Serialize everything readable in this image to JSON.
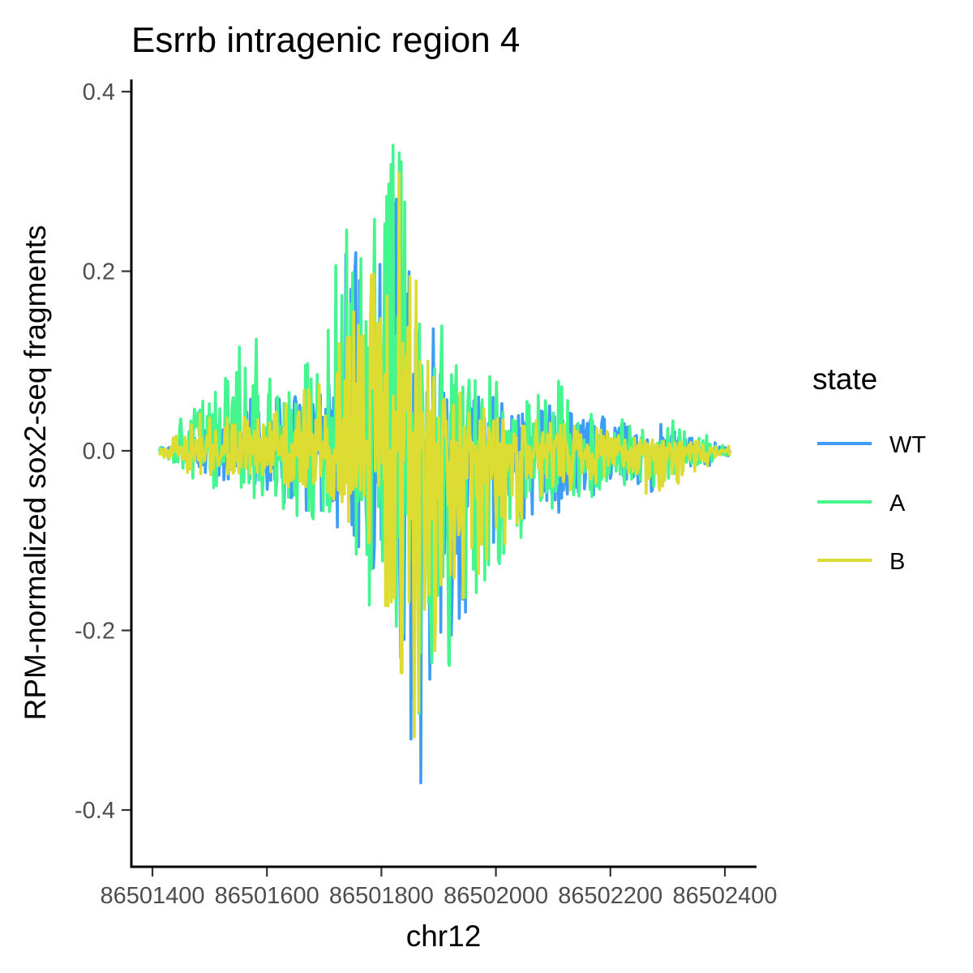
{
  "chart_data": {
    "type": "line",
    "title": "Esrrb intragenic region 4",
    "xlabel": "chr12",
    "ylabel": "RPM-normalized sox2-seq fragments",
    "xlim": [
      86501360,
      86502420
    ],
    "ylim": [
      -0.46,
      0.41
    ],
    "x_ticks": [
      86501400,
      86501600,
      86501800,
      86502000,
      86502200,
      86502400
    ],
    "x_tick_labels": [
      "86501400",
      "86501600",
      "86501800",
      "86502000",
      "86502200",
      "86502400"
    ],
    "y_ticks": [
      -0.4,
      -0.2,
      0.0,
      0.2,
      0.4
    ],
    "y_tick_labels": [
      "-0.4",
      "-0.2",
      "0.0",
      "0.2",
      "0.4"
    ],
    "grid": false,
    "legend": {
      "title": "state",
      "position": "right"
    },
    "x_range": [
      86501412,
      86502410
    ],
    "peak_x": 86501830,
    "colors": {
      "WT": "#3d9cf6",
      "A": "#45f68e",
      "B": "#dcdc32"
    },
    "series": [
      {
        "name": "WT",
        "color": "#3d9cf6",
        "upper": [
          [
            86501412,
            0.0
          ],
          [
            86501500,
            0.03
          ],
          [
            86501560,
            0.05
          ],
          [
            86501600,
            0.06
          ],
          [
            86501640,
            0.07
          ],
          [
            86501680,
            0.06
          ],
          [
            86501720,
            0.09
          ],
          [
            86501740,
            0.25
          ],
          [
            86501760,
            0.3
          ],
          [
            86501780,
            0.24
          ],
          [
            86501800,
            0.3
          ],
          [
            86501815,
            0.35
          ],
          [
            86501830,
            0.33
          ],
          [
            86501845,
            0.3
          ],
          [
            86501860,
            0.22
          ],
          [
            86501880,
            0.15
          ],
          [
            86501900,
            0.13
          ],
          [
            86501920,
            0.08
          ],
          [
            86501940,
            0.06
          ],
          [
            86501970,
            0.08
          ],
          [
            86502000,
            0.06
          ],
          [
            86502050,
            0.04
          ],
          [
            86502100,
            0.05
          ],
          [
            86502150,
            0.04
          ],
          [
            86502200,
            0.05
          ],
          [
            86502250,
            0.03
          ],
          [
            86502300,
            0.03
          ],
          [
            86502350,
            0.02
          ],
          [
            86502410,
            0.0
          ]
        ],
        "lower": [
          [
            86501412,
            0.0
          ],
          [
            86501500,
            -0.03
          ],
          [
            86501560,
            -0.04
          ],
          [
            86501600,
            -0.05
          ],
          [
            86501650,
            -0.07
          ],
          [
            86501700,
            -0.08
          ],
          [
            86501750,
            -0.12
          ],
          [
            86501790,
            -0.15
          ],
          [
            86501820,
            -0.2
          ],
          [
            86501850,
            -0.32
          ],
          [
            86501865,
            -0.42
          ],
          [
            86501880,
            -0.36
          ],
          [
            86501900,
            -0.33
          ],
          [
            86501920,
            -0.26
          ],
          [
            86501940,
            -0.2
          ],
          [
            86501960,
            -0.16
          ],
          [
            86501990,
            -0.13
          ],
          [
            86502020,
            -0.1
          ],
          [
            86502060,
            -0.08
          ],
          [
            86502100,
            -0.07
          ],
          [
            86502150,
            -0.05
          ],
          [
            86502200,
            -0.04
          ],
          [
            86502260,
            -0.05
          ],
          [
            86502300,
            -0.03
          ],
          [
            86502350,
            -0.02
          ],
          [
            86502410,
            0.0
          ]
        ]
      },
      {
        "name": "A",
        "color": "#45f68e",
        "upper": [
          [
            86501412,
            0.0
          ],
          [
            86501480,
            0.06
          ],
          [
            86501520,
            0.07
          ],
          [
            86501570,
            0.16
          ],
          [
            86501610,
            0.08
          ],
          [
            86501650,
            0.07
          ],
          [
            86501700,
            0.15
          ],
          [
            86501740,
            0.28
          ],
          [
            86501770,
            0.22
          ],
          [
            86501800,
            0.29
          ],
          [
            86501825,
            0.37
          ],
          [
            86501840,
            0.34
          ],
          [
            86501860,
            0.27
          ],
          [
            86501880,
            0.2
          ],
          [
            86501900,
            0.16
          ],
          [
            86501930,
            0.1
          ],
          [
            86501960,
            0.08
          ],
          [
            86501990,
            0.1
          ],
          [
            86502030,
            0.07
          ],
          [
            86502060,
            0.05
          ],
          [
            86502100,
            0.11
          ],
          [
            86502130,
            0.05
          ],
          [
            86502200,
            0.04
          ],
          [
            86502260,
            0.03
          ],
          [
            86502320,
            0.03
          ],
          [
            86502410,
            0.0
          ]
        ],
        "lower": [
          [
            86501412,
            0.0
          ],
          [
            86501480,
            -0.04
          ],
          [
            86501540,
            -0.05
          ],
          [
            86501600,
            -0.06
          ],
          [
            86501650,
            -0.08
          ],
          [
            86501700,
            -0.11
          ],
          [
            86501760,
            -0.14
          ],
          [
            86501800,
            -0.22
          ],
          [
            86501820,
            -0.25
          ],
          [
            86501840,
            -0.3
          ],
          [
            86501855,
            -0.39
          ],
          [
            86501875,
            -0.33
          ],
          [
            86501895,
            -0.32
          ],
          [
            86501915,
            -0.27
          ],
          [
            86501940,
            -0.21
          ],
          [
            86501970,
            -0.17
          ],
          [
            86502000,
            -0.14
          ],
          [
            86502030,
            -0.11
          ],
          [
            86502070,
            -0.09
          ],
          [
            86502110,
            -0.06
          ],
          [
            86502160,
            -0.05
          ],
          [
            86502220,
            -0.04
          ],
          [
            86502280,
            -0.04
          ],
          [
            86502340,
            -0.02
          ],
          [
            86502410,
            0.0
          ]
        ]
      },
      {
        "name": "B",
        "color": "#dcdc32",
        "upper": [
          [
            86501412,
            0.0
          ],
          [
            86501480,
            0.04
          ],
          [
            86501540,
            0.05
          ],
          [
            86501600,
            0.04
          ],
          [
            86501650,
            0.06
          ],
          [
            86501700,
            0.1
          ],
          [
            86501740,
            0.16
          ],
          [
            86501770,
            0.18
          ],
          [
            86501800,
            0.26
          ],
          [
            86501820,
            0.34
          ],
          [
            86501835,
            0.32
          ],
          [
            86501850,
            0.24
          ],
          [
            86501870,
            0.14
          ],
          [
            86501890,
            0.1
          ],
          [
            86501920,
            0.07
          ],
          [
            86501960,
            0.05
          ],
          [
            86502000,
            0.04
          ],
          [
            86502060,
            0.03
          ],
          [
            86502120,
            0.03
          ],
          [
            86502200,
            0.02
          ],
          [
            86502260,
            0.02
          ],
          [
            86502330,
            0.01
          ],
          [
            86502410,
            0.0
          ]
        ],
        "lower": [
          [
            86501412,
            0.0
          ],
          [
            86501480,
            -0.03
          ],
          [
            86501550,
            -0.03
          ],
          [
            86501620,
            -0.04
          ],
          [
            86501680,
            -0.05
          ],
          [
            86501740,
            -0.08
          ],
          [
            86501790,
            -0.14
          ],
          [
            86501820,
            -0.2
          ],
          [
            86501840,
            -0.27
          ],
          [
            86501855,
            -0.33
          ],
          [
            86501870,
            -0.28
          ],
          [
            86501890,
            -0.24
          ],
          [
            86501910,
            -0.22
          ],
          [
            86501935,
            -0.18
          ],
          [
            86501960,
            -0.15
          ],
          [
            86501990,
            -0.12
          ],
          [
            86502020,
            -0.1
          ],
          [
            86502060,
            -0.06
          ],
          [
            86502100,
            -0.05
          ],
          [
            86502160,
            -0.04
          ],
          [
            86502220,
            -0.03
          ],
          [
            86502290,
            -0.06
          ],
          [
            86502340,
            -0.03
          ],
          [
            86502410,
            0.0
          ]
        ]
      }
    ]
  }
}
